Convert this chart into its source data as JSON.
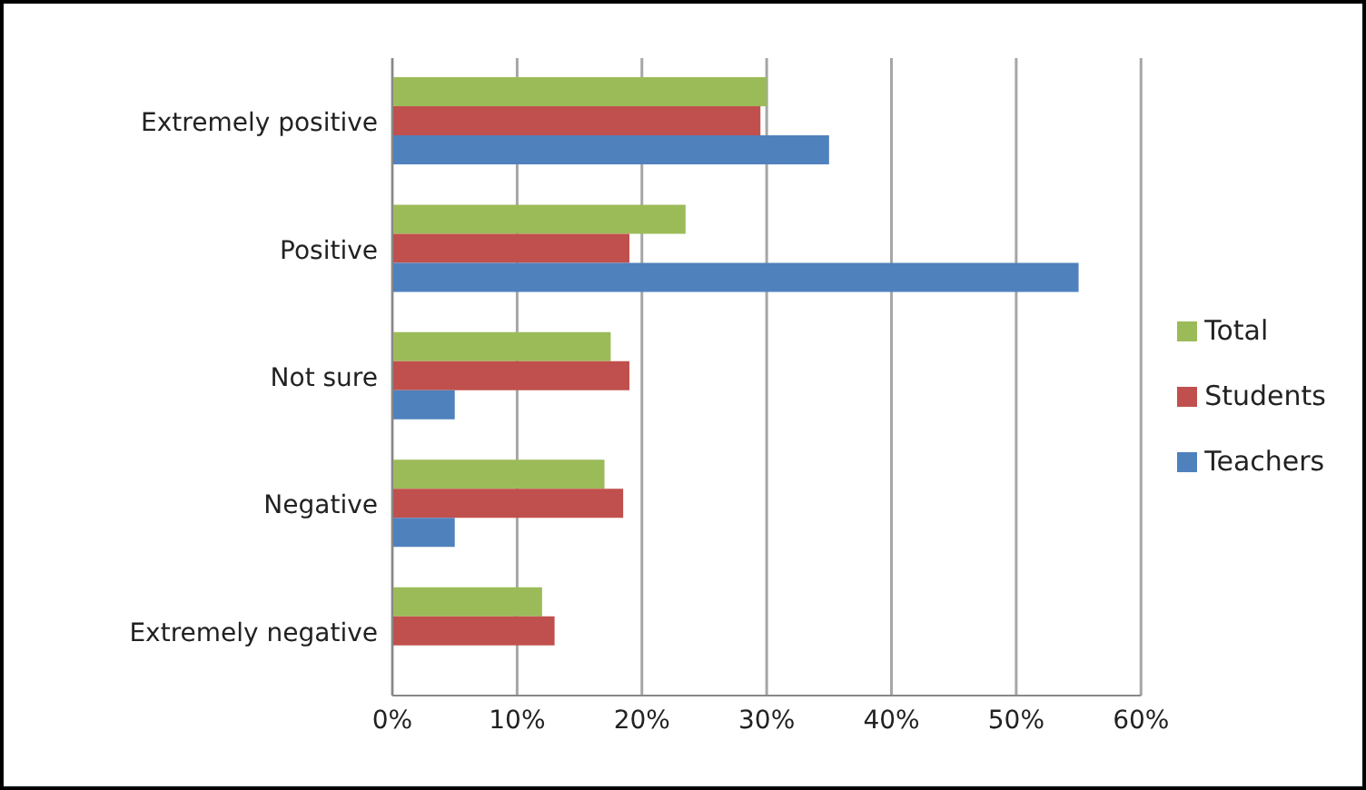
{
  "chart_data": {
    "type": "bar",
    "orientation": "horizontal",
    "categories": [
      "Extremely positive",
      "Positive",
      "Not sure",
      "Negative",
      "Extremely negative"
    ],
    "series": [
      {
        "name": "Total",
        "color": "#9bbb59",
        "values": [
          30,
          23.5,
          17.5,
          17,
          12
        ]
      },
      {
        "name": "Students",
        "color": "#c0504d",
        "values": [
          29.5,
          19,
          19,
          18.5,
          13
        ]
      },
      {
        "name": "Teachers",
        "color": "#4f81bd",
        "values": [
          35,
          55,
          5,
          5,
          null
        ]
      }
    ],
    "xlim": [
      0,
      60
    ],
    "xticks": [
      {
        "value": 0,
        "label": "0%"
      },
      {
        "value": 10,
        "label": "10%"
      },
      {
        "value": 20,
        "label": "20%"
      },
      {
        "value": 30,
        "label": "30%"
      },
      {
        "value": 40,
        "label": "40%"
      },
      {
        "value": 50,
        "label": "50%"
      },
      {
        "value": 60,
        "label": "60%"
      }
    ],
    "grid": "x",
    "legend": "right"
  }
}
